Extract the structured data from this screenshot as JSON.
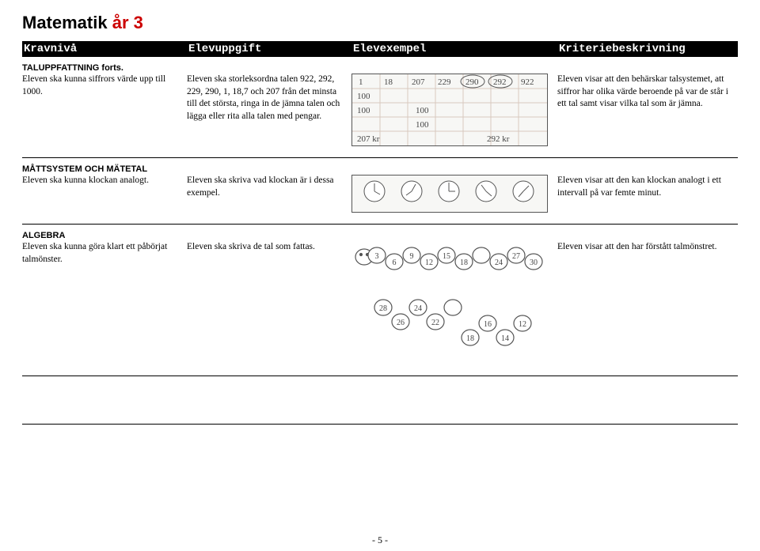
{
  "title": {
    "part1": "Matematik ",
    "part2": "år 3"
  },
  "header": {
    "c1": "Kravnivå",
    "c2": "Elevuppgift",
    "c3": "Elevexempel",
    "c4": "Kriteriebeskrivning"
  },
  "sec1": {
    "heading": "TALUPPFATTNING forts.",
    "krav": "Eleven ska kunna siffrors värde upp till 1000.",
    "uppg": "Eleven ska storleksordna talen 922, 292, 229, 290, 1, 18,7 och 207 från det minsta till det största, ringa in de jämna talen och lägga eller rita alla talen med pengar.",
    "krit": "Eleven visar att den behärskar talsystemet, att siffror har olika värde beroende på var de står i ett tal samt visar vilka tal som är jämna.",
    "example": {
      "sorted": [
        "1",
        "18",
        "207",
        "229",
        "290",
        "292",
        "922"
      ],
      "rows": [
        [
          "100",
          "",
          "",
          "",
          "",
          "",
          ""
        ],
        [
          "100",
          "",
          "100",
          "",
          "",
          "",
          ""
        ],
        [
          "",
          "",
          "100",
          "",
          "",
          "",
          ""
        ]
      ],
      "bottom_left": "207 kr",
      "bottom_right": "292 kr",
      "grid_color": "#d8c8bf",
      "text_color": "#444444"
    }
  },
  "sec2": {
    "heading": "MÅTTSYSTEM OCH MÄTETAL",
    "krav": "Eleven ska kunna klockan analogt.",
    "uppg": "Eleven ska skriva vad klockan är i dessa exempel.",
    "krit": "Eleven visar att den kan klockan analogt i ett intervall på var femte minut.",
    "clocks": {
      "count": 5,
      "face_color": "#ffffff",
      "stroke": "#555555",
      "border_color": "#555555"
    }
  },
  "sec3": {
    "heading": "ALGEBRA",
    "krav": "Eleven ska kunna göra klart ett påbörjat talmönster.",
    "uppg": "Eleven ska skriva de tal som fattas.",
    "krit": "Eleven visar att den har förstått talmönstret.",
    "worm1": {
      "numbers": [
        "3",
        "6",
        "9",
        "12",
        "15",
        "18",
        "",
        "24",
        "27",
        "30"
      ],
      "stroke": "#555",
      "fill": "#fff"
    },
    "worm2": {
      "numbers": [
        "28",
        "26",
        "24",
        "22",
        "",
        "18",
        "16",
        "14",
        "12"
      ],
      "stroke": "#555",
      "fill": "#fff"
    }
  },
  "page_number": "- 5 -",
  "colors": {
    "bg": "#ffffff",
    "rule": "#000000"
  }
}
